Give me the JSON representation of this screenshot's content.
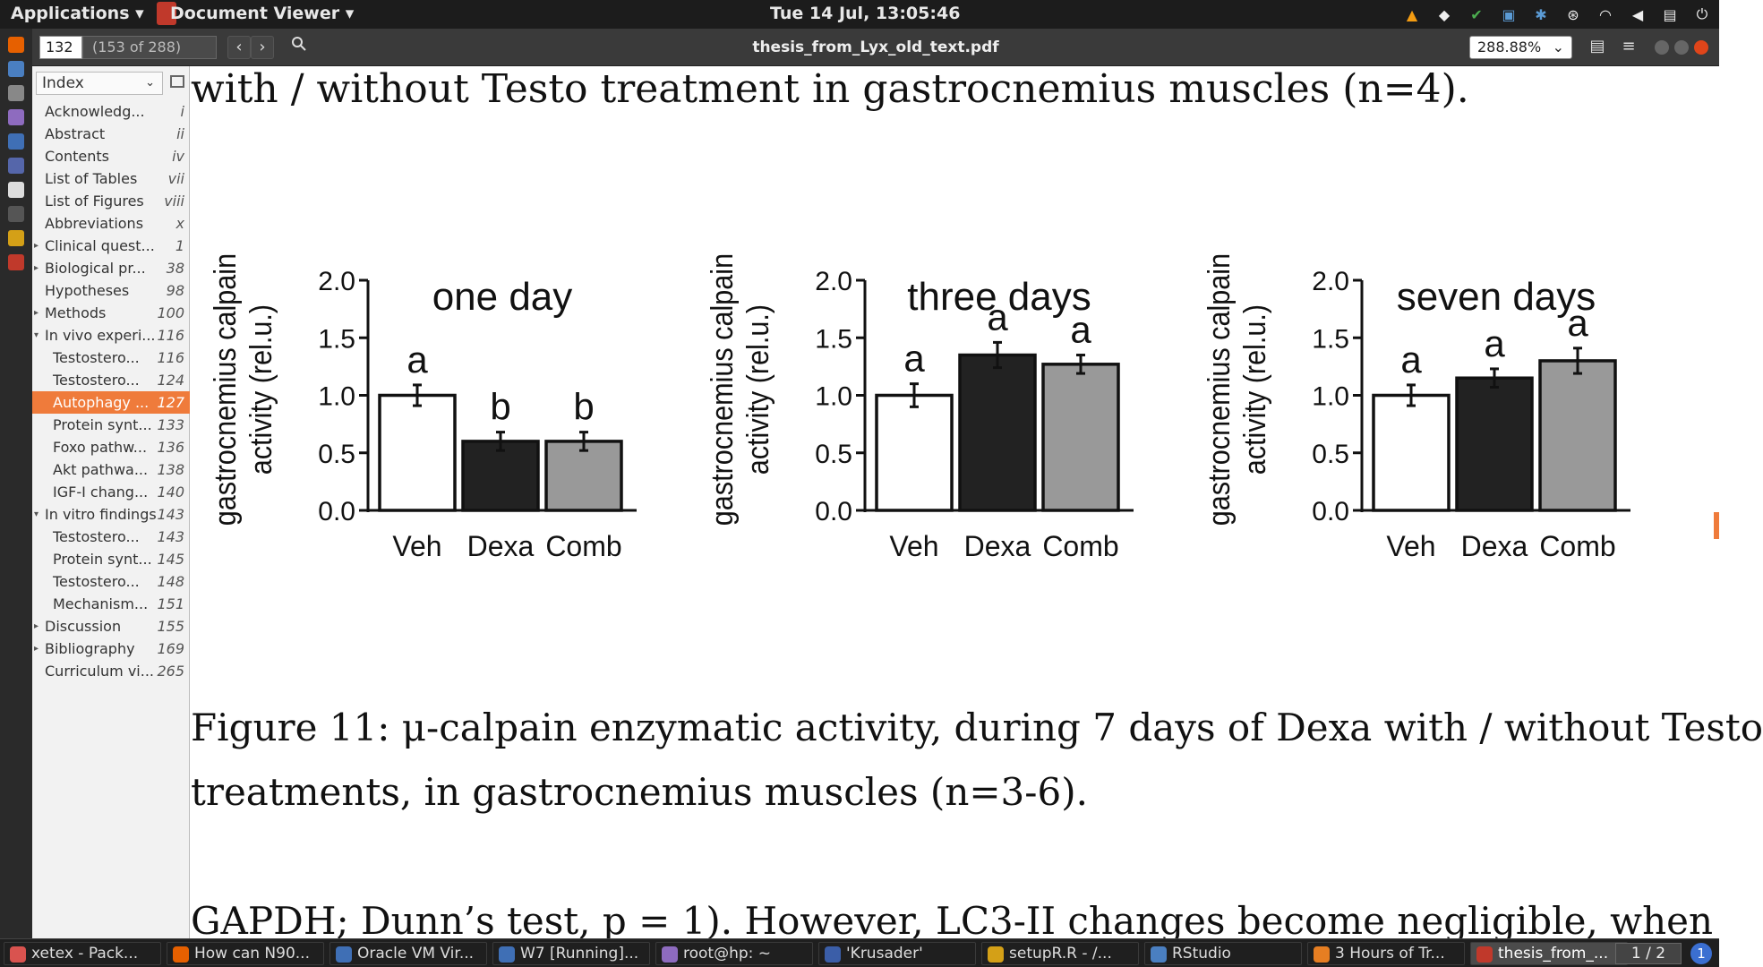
{
  "top_panel": {
    "applications": "Applications ▾",
    "document_viewer": "Document Viewer ▾",
    "clock": "Tue 14 Jul, 13:05:46"
  },
  "toolbar": {
    "page_value": "132",
    "page_of": "(153 of 288)",
    "prev_icon": "‹",
    "next_icon": "›",
    "search_icon": "🔍",
    "title": "thesis_from_Lyx_old_text.pdf",
    "zoom": "288.88%",
    "menu_icon": "≡"
  },
  "sidebar": {
    "index_label": "Index",
    "items": [
      {
        "label": "Acknowledg...",
        "page": "i",
        "sub": false,
        "arrow": ""
      },
      {
        "label": "Abstract",
        "page": "ii",
        "sub": false,
        "arrow": ""
      },
      {
        "label": "Contents",
        "page": "iv",
        "sub": false,
        "arrow": ""
      },
      {
        "label": "List of Tables",
        "page": "vii",
        "sub": false,
        "arrow": ""
      },
      {
        "label": "List of Figures",
        "page": "viii",
        "sub": false,
        "arrow": ""
      },
      {
        "label": "Abbreviations",
        "page": "x",
        "sub": false,
        "arrow": ""
      },
      {
        "label": "Clinical quest...",
        "page": "1",
        "sub": false,
        "arrow": "▸"
      },
      {
        "label": "Biological pr...",
        "page": "38",
        "sub": false,
        "arrow": "▸"
      },
      {
        "label": "Hypotheses",
        "page": "98",
        "sub": false,
        "arrow": ""
      },
      {
        "label": "Methods",
        "page": "100",
        "sub": false,
        "arrow": "▸"
      },
      {
        "label": "In vivo experi...",
        "page": "116",
        "sub": false,
        "arrow": "▾"
      },
      {
        "label": "Testostero...",
        "page": "116",
        "sub": true,
        "arrow": ""
      },
      {
        "label": "Testostero...",
        "page": "124",
        "sub": true,
        "arrow": ""
      },
      {
        "label": "Autophagy ...",
        "page": "127",
        "sub": true,
        "arrow": "",
        "selected": true
      },
      {
        "label": "Protein synt...",
        "page": "133",
        "sub": true,
        "arrow": ""
      },
      {
        "label": "Foxo pathw...",
        "page": "136",
        "sub": true,
        "arrow": ""
      },
      {
        "label": "Akt pathwa...",
        "page": "138",
        "sub": true,
        "arrow": ""
      },
      {
        "label": "IGF-I chang...",
        "page": "140",
        "sub": true,
        "arrow": ""
      },
      {
        "label": "In vitro findings",
        "page": "143",
        "sub": false,
        "arrow": "▾"
      },
      {
        "label": "Testostero...",
        "page": "143",
        "sub": true,
        "arrow": ""
      },
      {
        "label": "Protein synt...",
        "page": "145",
        "sub": true,
        "arrow": ""
      },
      {
        "label": "Testostero...",
        "page": "148",
        "sub": true,
        "arrow": ""
      },
      {
        "label": "Mechanism...",
        "page": "151",
        "sub": true,
        "arrow": ""
      },
      {
        "label": "Discussion",
        "page": "155",
        "sub": false,
        "arrow": "▸"
      },
      {
        "label": "Bibliography",
        "page": "169",
        "sub": false,
        "arrow": "▸"
      },
      {
        "label": "Curriculum vi...",
        "page": "265",
        "sub": false,
        "arrow": ""
      }
    ]
  },
  "document": {
    "text_top": "with / without Testo treatment in gastrocnemius muscles (n=4).",
    "caption_line1": "Figure 11: μ-calpain enzymatic activity, during 7 days of Dexa with / without Testo",
    "caption_line2": "treatments, in gastrocnemius muscles (n=3-6).",
    "text_bottom": "GAPDH; Dunn’s test, p = 1). However, LC3-II changes become negligible, when"
  },
  "chart_data": [
    {
      "type": "bar",
      "title": "one day",
      "ylabel": "gastrocnemius calpain activity (rel.u.)",
      "categories": [
        "Veh",
        "Dexa",
        "Comb"
      ],
      "values": [
        1.0,
        0.6,
        0.6
      ],
      "errors": [
        0.09,
        0.08,
        0.08
      ],
      "letters": [
        "a",
        "b",
        "b"
      ],
      "ylim": [
        0,
        2.0
      ],
      "yticks": [
        "0.0",
        "0.5",
        "1.0",
        "1.5",
        "2.0"
      ],
      "colors": [
        "#ffffff",
        "#222222",
        "#999999"
      ]
    },
    {
      "type": "bar",
      "title": "three days",
      "ylabel": "gastrocnemius calpain activity (rel.u.)",
      "categories": [
        "Veh",
        "Dexa",
        "Comb"
      ],
      "values": [
        1.0,
        1.35,
        1.27
      ],
      "errors": [
        0.1,
        0.11,
        0.08
      ],
      "letters": [
        "a",
        "a",
        "a"
      ],
      "ylim": [
        0,
        2.0
      ],
      "yticks": [
        "0.0",
        "0.5",
        "1.0",
        "1.5",
        "2.0"
      ],
      "colors": [
        "#ffffff",
        "#222222",
        "#999999"
      ]
    },
    {
      "type": "bar",
      "title": "seven days",
      "ylabel": "gastrocnemius calpain activity (rel.u.)",
      "categories": [
        "Veh",
        "Dexa",
        "Comb"
      ],
      "values": [
        1.0,
        1.15,
        1.3
      ],
      "errors": [
        0.09,
        0.08,
        0.11
      ],
      "letters": [
        "a",
        "a",
        "a"
      ],
      "ylim": [
        0,
        2.0
      ],
      "yticks": [
        "0.0",
        "0.5",
        "1.0",
        "1.5",
        "2.0"
      ],
      "colors": [
        "#ffffff",
        "#222222",
        "#999999"
      ]
    }
  ],
  "taskbar": {
    "tasks": [
      {
        "label": "xetex - Pack...",
        "color": "#d9534f"
      },
      {
        "label": "How can N90...",
        "color": "#e66000"
      },
      {
        "label": "Oracle VM Vir...",
        "color": "#3f6fb5"
      },
      {
        "label": "W7 [Running]...",
        "color": "#3f6fb5"
      },
      {
        "label": "root@hp: ~",
        "color": "#8e6bbf"
      },
      {
        "label": "'Krusader'",
        "color": "#3b5ea8"
      },
      {
        "label": "setupR.R - /...",
        "color": "#d4a017"
      },
      {
        "label": "RStudio",
        "color": "#4a7fc1"
      },
      {
        "label": "3 Hours of Tr...",
        "color": "#e67e22"
      },
      {
        "label": "thesis_from_...",
        "color": "#c0392b",
        "active": true
      }
    ],
    "workspace": "1 / 2",
    "badge": "1"
  }
}
